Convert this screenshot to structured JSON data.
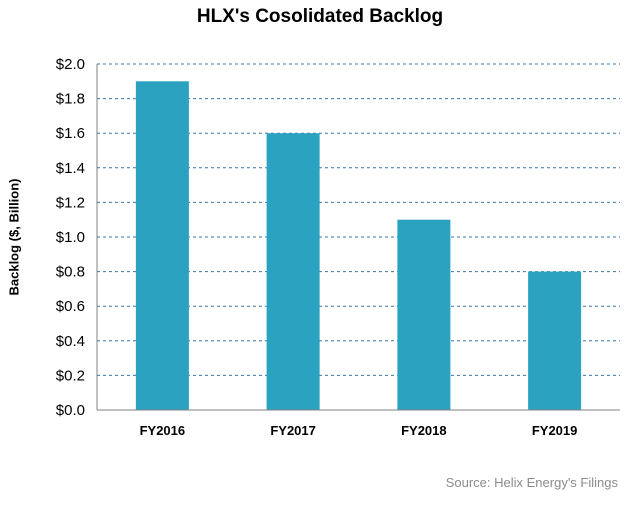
{
  "colors": {
    "bar": "#2aa2c0",
    "grid": "#3b77a8",
    "axis": "#808080",
    "source_text": "#8c8c8c"
  },
  "footer": {
    "source": "Source: Helix Energy's Filings"
  },
  "chart_data": {
    "type": "bar",
    "title": "HLX's Cosolidated Backlog",
    "xlabel": "",
    "ylabel": "Backlog ($, Billion)",
    "categories": [
      "FY2016",
      "FY2017",
      "FY2018",
      "FY2019"
    ],
    "values": [
      1.9,
      1.6,
      1.1,
      0.8
    ],
    "ylim": [
      0,
      2.0
    ],
    "yticks": [
      0.0,
      0.2,
      0.4,
      0.6,
      0.8,
      1.0,
      1.2,
      1.4,
      1.6,
      1.8,
      2.0
    ],
    "ytick_labels": [
      "$0.0",
      "$0.2",
      "$0.4",
      "$0.6",
      "$0.8",
      "$1.0",
      "$1.2",
      "$1.4",
      "$1.6",
      "$1.8",
      "$2.0"
    ],
    "grid": true,
    "grid_style": "dashed",
    "legend": false
  }
}
